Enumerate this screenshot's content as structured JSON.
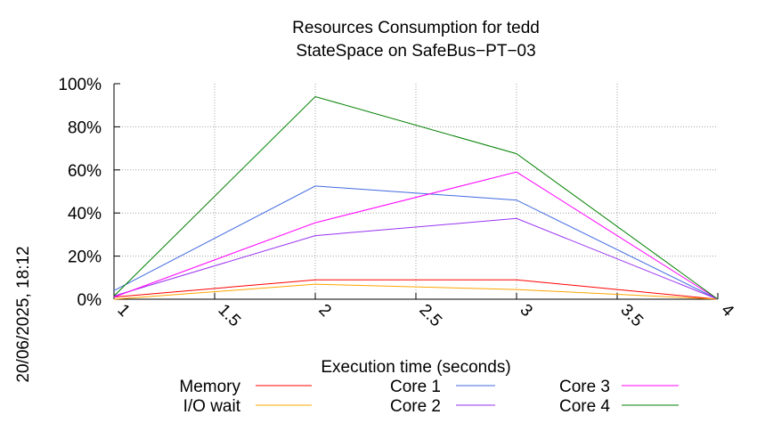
{
  "chart_data": {
    "type": "line",
    "title_line1": "Resources Consumption for tedd",
    "title_line2": "StateSpace on SafeBus−PT−03",
    "xlabel": "Execution time (seconds)",
    "timestamp": "20/06/2025, 18:12",
    "xlim": [
      1,
      4
    ],
    "ylim": [
      0,
      100
    ],
    "x_ticks": [
      1,
      1.5,
      2,
      2.5,
      3,
      3.5,
      4
    ],
    "x_tick_labels": [
      "1",
      "1.5",
      "2",
      "2.5",
      "3",
      "3.5",
      "4"
    ],
    "y_ticks": [
      0,
      20,
      40,
      60,
      80,
      100
    ],
    "y_tick_labels": [
      "0%",
      "20%",
      "40%",
      "60%",
      "80%",
      "100%"
    ],
    "grid": true,
    "legend_position": "bottom",
    "x": [
      1,
      2,
      3,
      4
    ],
    "series": [
      {
        "name": "Memory",
        "color": "#ff0000",
        "values": [
          1,
          9,
          9,
          0
        ]
      },
      {
        "name": "I/O wait",
        "color": "#ffa500",
        "values": [
          0,
          7,
          4.5,
          0
        ]
      },
      {
        "name": "Core 1",
        "color": "#4169e1",
        "values": [
          4,
          52.5,
          46,
          0
        ]
      },
      {
        "name": "Core 2",
        "color": "#9932f0",
        "values": [
          1.5,
          29.5,
          37.5,
          0
        ]
      },
      {
        "name": "Core 3",
        "color": "#ff00ff",
        "values": [
          1,
          35.5,
          59,
          0
        ]
      },
      {
        "name": "Core 4",
        "color": "#008000",
        "values": [
          1.5,
          94,
          67.5,
          0
        ]
      }
    ]
  }
}
